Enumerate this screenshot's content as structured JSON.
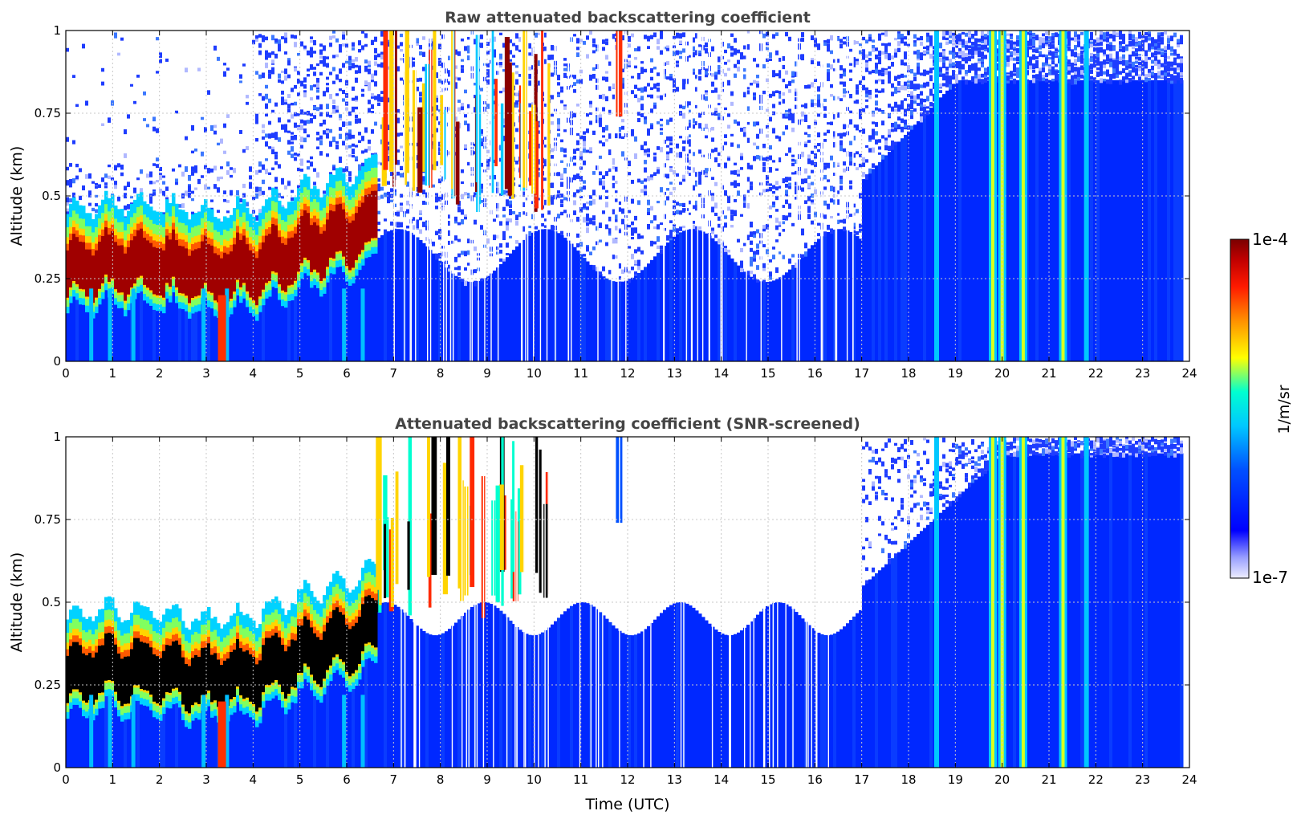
{
  "chart_data": [
    {
      "type": "heatmap",
      "title": "Raw attenuated backscattering coefficient",
      "xlabel": "",
      "ylabel": "Altitude (km)",
      "xlim": [
        0,
        24
      ],
      "ylim": [
        0,
        1
      ],
      "x_ticks": [
        "0",
        "1",
        "2",
        "3",
        "4",
        "5",
        "6",
        "7",
        "8",
        "9",
        "10",
        "11",
        "12",
        "13",
        "14",
        "15",
        "16",
        "17",
        "18",
        "19",
        "20",
        "21",
        "22",
        "23",
        "24"
      ],
      "y_ticks": [
        "0",
        "0.25",
        "0.5",
        "0.75",
        "1"
      ],
      "grid": true,
      "screened": false
    },
    {
      "type": "heatmap",
      "title": "Attenuated backscattering coefficient (SNR-screened)",
      "xlabel": "Time (UTC)",
      "ylabel": "Altitude (km)",
      "xlim": [
        0,
        24
      ],
      "ylim": [
        0,
        1
      ],
      "x_ticks": [
        "0",
        "1",
        "2",
        "3",
        "4",
        "5",
        "6",
        "7",
        "8",
        "9",
        "10",
        "11",
        "12",
        "13",
        "14",
        "15",
        "16",
        "17",
        "18",
        "19",
        "20",
        "21",
        "22",
        "23",
        "24"
      ],
      "y_ticks": [
        "0",
        "0.25",
        "0.5",
        "0.75",
        "1"
      ],
      "grid": true,
      "screened": true
    }
  ],
  "features": {
    "boundary_layer_top_km": [
      {
        "t": 0,
        "z": 0.3
      },
      {
        "t": 1,
        "z": 0.32
      },
      {
        "t": 2,
        "z": 0.31
      },
      {
        "t": 3,
        "z": 0.29
      },
      {
        "t": 4,
        "z": 0.3
      },
      {
        "t": 5,
        "z": 0.36
      },
      {
        "t": 6,
        "z": 0.4
      },
      {
        "t": 6.5,
        "z": 0.44
      }
    ],
    "vertical_features_hours": [
      {
        "t": 18.6,
        "level": "mid"
      },
      {
        "t": 19.8,
        "level": "high"
      },
      {
        "t": 20.0,
        "level": "high"
      },
      {
        "t": 20.45,
        "level": "high"
      },
      {
        "t": 21.3,
        "level": "high"
      },
      {
        "t": 21.8,
        "level": "mid"
      }
    ]
  },
  "colorbar": {
    "label": "1/m/sr",
    "max_label": "1e-4",
    "min_label": "1e-7",
    "min": 1e-07,
    "max": 0.0001,
    "scale": "log",
    "colormap": "jet",
    "colors": [
      "#e8e8ff",
      "#0000ff",
      "#00bfff",
      "#00ffff",
      "#ffff00",
      "#ff8000",
      "#ff0000",
      "#8b0000"
    ]
  }
}
